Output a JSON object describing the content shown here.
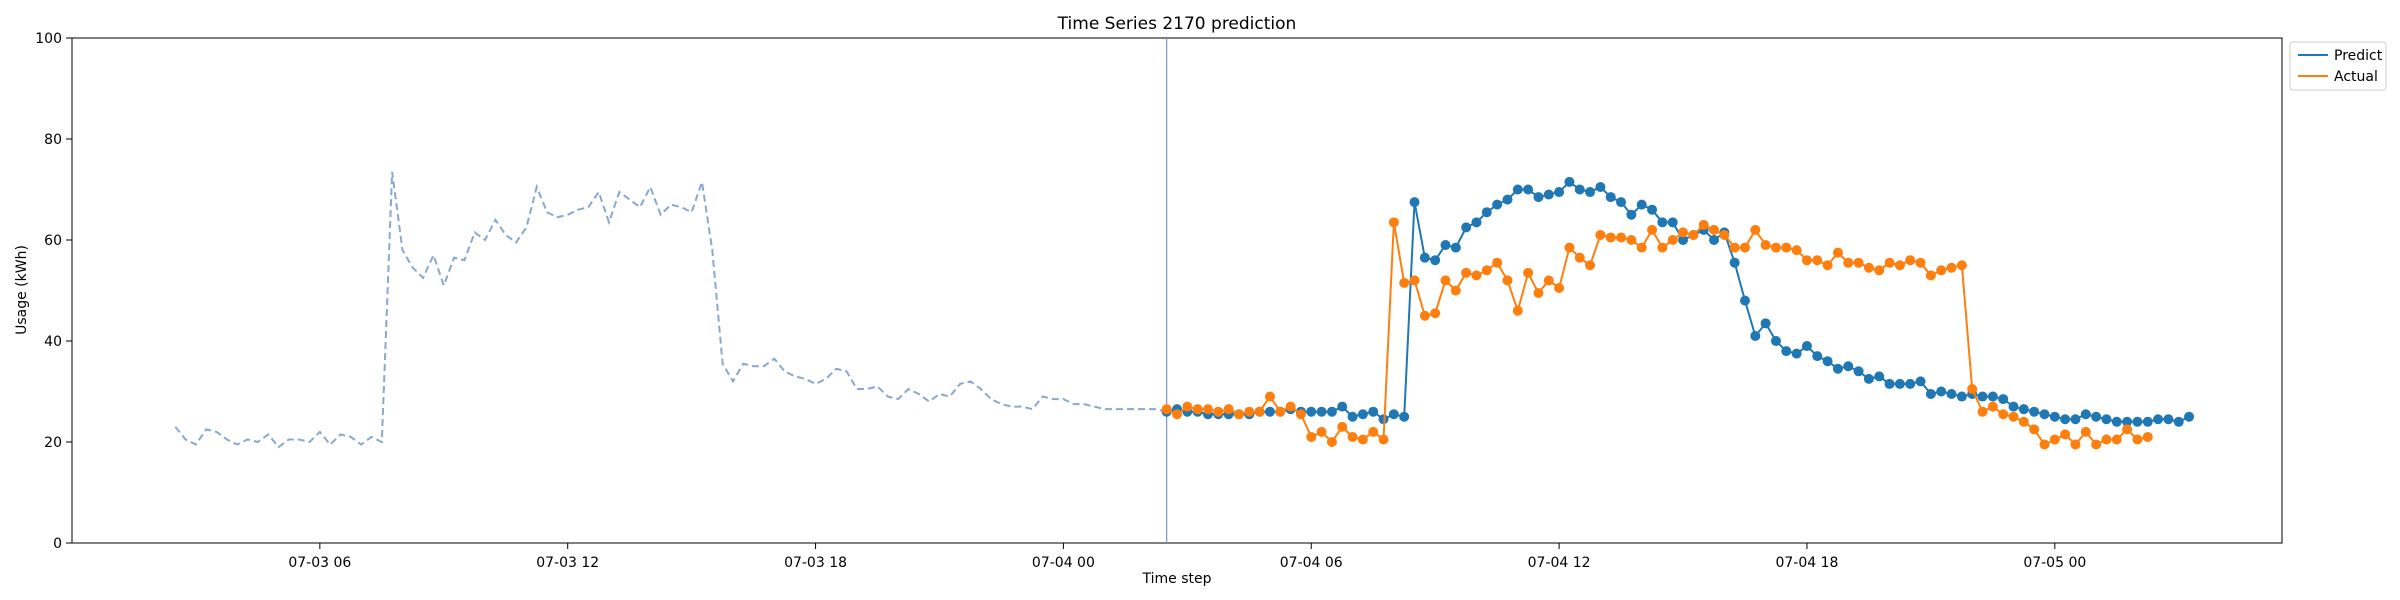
{
  "chart_data": {
    "type": "line",
    "title": "Time Series 2170 prediction",
    "xlabel": "Time step",
    "ylabel": "Usage (kWh)",
    "xlim": [
      "2024-07-03 00:00",
      "2024-07-05 05:30"
    ],
    "ylim": [
      0,
      100
    ],
    "x_ticks": [
      {
        "t": "2024-07-03 06:00",
        "label": "07-03 06"
      },
      {
        "t": "2024-07-03 12:00",
        "label": "07-03 12"
      },
      {
        "t": "2024-07-03 18:00",
        "label": "07-03 18"
      },
      {
        "t": "2024-07-04 00:00",
        "label": "07-04 00"
      },
      {
        "t": "2024-07-04 06:00",
        "label": "07-04 06"
      },
      {
        "t": "2024-07-04 12:00",
        "label": "07-04 12"
      },
      {
        "t": "2024-07-04 18:00",
        "label": "07-04 18"
      },
      {
        "t": "2024-07-05 00:00",
        "label": "07-05 00"
      }
    ],
    "y_ticks": [
      0,
      20,
      40,
      60,
      80,
      100
    ],
    "grid": false,
    "legend_position": "outside-top-right",
    "forecast_start": "2024-07-04 02:30",
    "series": [
      {
        "name": "",
        "style": "dashed",
        "color": "#8aa7cf",
        "x_start": "2024-07-03 02:30",
        "step_minutes": 15,
        "values": [
          23,
          20.5,
          19.5,
          22.5,
          22,
          20.5,
          19.5,
          20.5,
          20,
          21.5,
          19,
          20.5,
          20.5,
          20,
          22,
          19.5,
          21.5,
          21,
          19.5,
          21,
          20,
          73.5,
          58,
          54.5,
          52.5,
          57,
          51,
          56.5,
          56,
          61.5,
          60,
          64,
          61,
          59.5,
          62.5,
          70.5,
          65.5,
          64.5,
          65,
          66,
          66.5,
          69.5,
          63.5,
          69.5,
          68,
          66.5,
          70.5,
          65,
          67,
          66.5,
          65.5,
          71.5,
          58,
          35.5,
          32,
          35.5,
          35,
          35,
          36.5,
          34,
          33,
          32.5,
          31.5,
          32.5,
          34.5,
          34,
          30.5,
          30.5,
          31,
          29,
          28.5,
          30.5,
          29.5,
          28,
          29.5,
          29,
          31.5,
          32,
          30.5,
          28.5,
          27.5,
          27,
          27,
          26.5,
          29,
          28.5,
          28.5,
          27.5,
          27.5,
          27,
          26.5,
          26.5,
          26.5,
          26.5,
          26.5,
          26.5,
          26
        ]
      },
      {
        "name": "Predict",
        "style": "line-marker",
        "color": "#1f77b4",
        "x_start": "2024-07-04 02:30",
        "step_minutes": 15,
        "values": [
          26,
          26.5,
          26,
          26,
          25.5,
          25.5,
          25.5,
          25.5,
          25.5,
          26,
          26,
          26,
          26.5,
          26,
          26,
          26,
          26,
          27,
          25,
          25.5,
          26,
          24.5,
          25.5,
          25,
          67.5,
          56.5,
          56,
          59,
          58.5,
          62.5,
          63.5,
          65.5,
          67,
          68,
          70,
          70,
          68.5,
          69,
          69.5,
          71.5,
          70,
          69.5,
          70.5,
          68.5,
          67.5,
          65,
          67,
          66,
          63.5,
          63.5,
          60,
          61,
          62,
          60,
          61.5,
          55.5,
          48,
          41,
          43.5,
          40,
          38,
          37.5,
          39,
          37,
          36,
          34.5,
          35,
          34,
          32.5,
          33,
          31.5,
          31.5,
          31.5,
          32,
          29.5,
          30,
          29.5,
          29,
          29.5,
          29,
          29,
          28.5,
          27,
          26.5,
          26,
          25.5,
          25,
          24.5,
          24.5,
          25.5,
          25,
          24.5,
          24,
          24,
          24,
          24,
          24.5,
          24.5,
          24,
          25
        ]
      },
      {
        "name": "Actual",
        "style": "line-marker",
        "color": "#ff7f0e",
        "x_start": "2024-07-04 02:30",
        "step_minutes": 15,
        "values": [
          26.5,
          25.5,
          27,
          26.5,
          26.5,
          26,
          26.5,
          25.5,
          26,
          26,
          29,
          26,
          27,
          25.5,
          21,
          22,
          20,
          23,
          21,
          20.5,
          22,
          20.5,
          63.5,
          51.5,
          52,
          45,
          45.5,
          52,
          50,
          53.5,
          53,
          54,
          55.5,
          52,
          46,
          53.5,
          49.5,
          52,
          50.5,
          58.5,
          56.5,
          55,
          61,
          60.5,
          60.5,
          60,
          58.5,
          62,
          58.5,
          60,
          61.5,
          61,
          63,
          62,
          61,
          58.5,
          58.5,
          62,
          59,
          58.5,
          58.5,
          58,
          56,
          56,
          55,
          57.5,
          55.5,
          55.5,
          54.5,
          54,
          55.5,
          55,
          56,
          55.5,
          53,
          54,
          54.5,
          55,
          30.5,
          26,
          27,
          25.5,
          25,
          24,
          22.5,
          19.5,
          20.5,
          21.5,
          19.5,
          22,
          19.5,
          20.5,
          20.5,
          22.5,
          20.5,
          21
        ]
      }
    ]
  }
}
